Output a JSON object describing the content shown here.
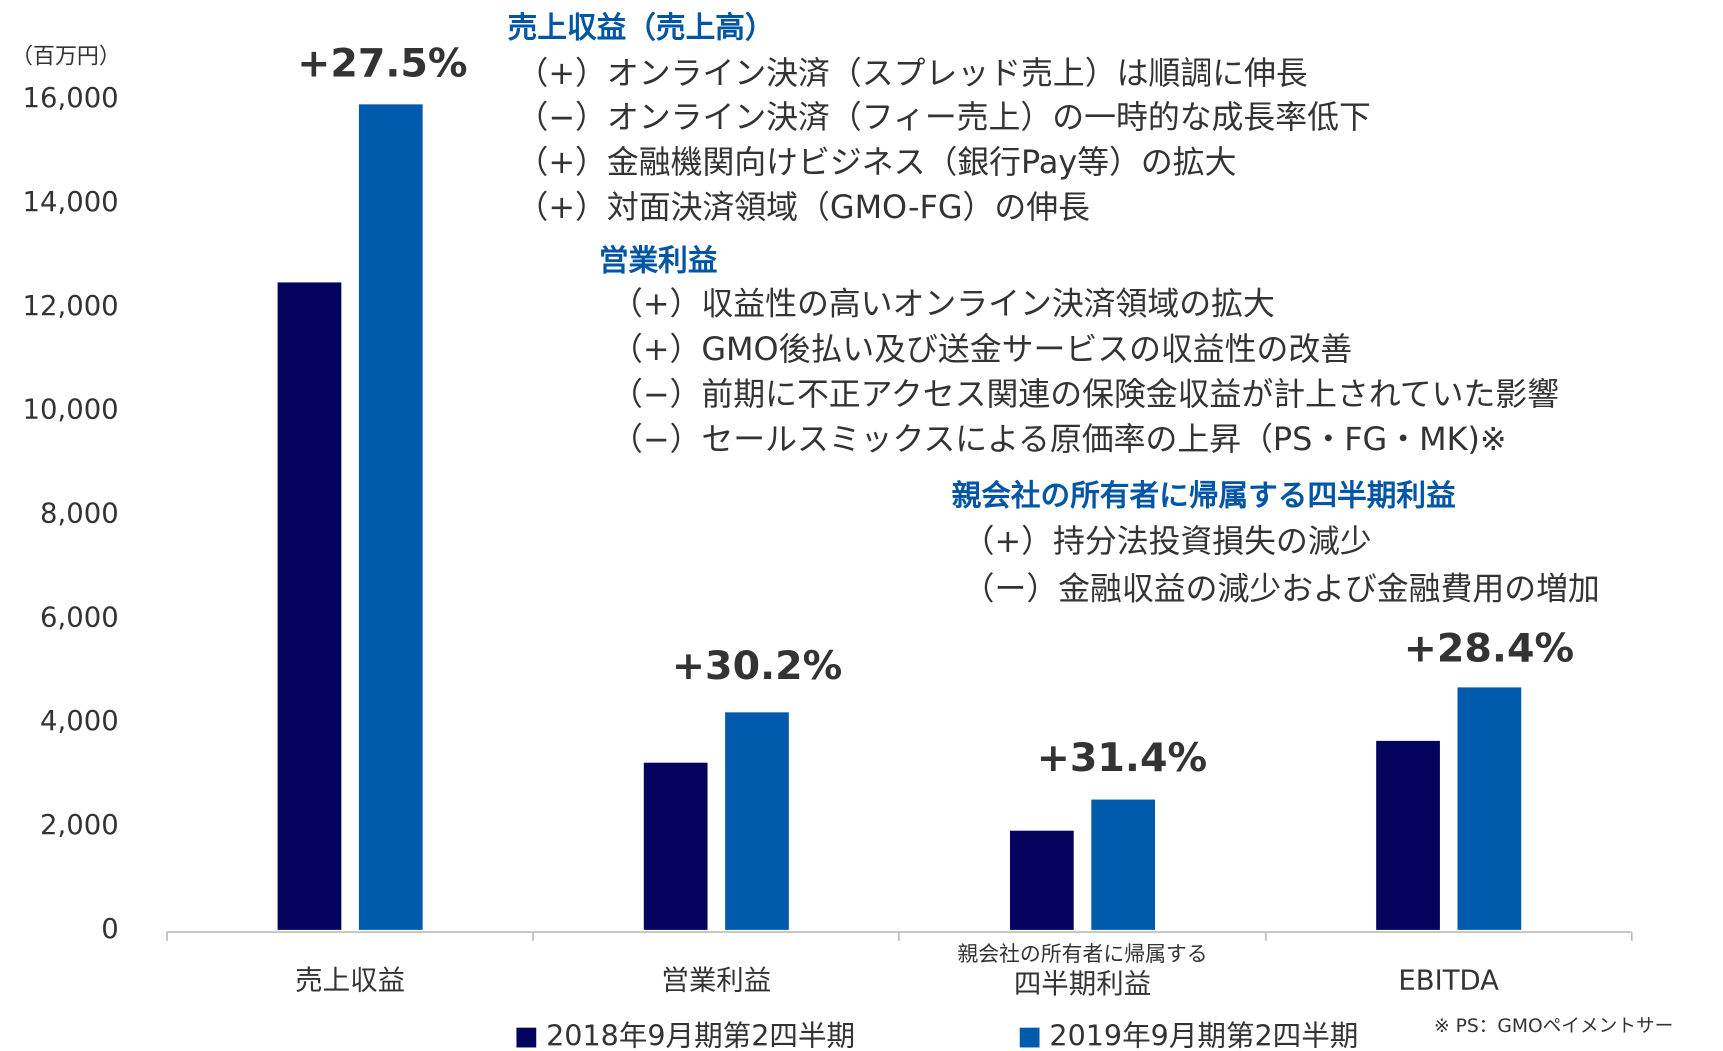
{
  "chart_data": {
    "type": "bar",
    "unit_label": "（百万円）",
    "categories": [
      "売上収益",
      "営業利益",
      [
        "親会社の所有者に帰属する",
        "四半期利益"
      ],
      "EBITDA"
    ],
    "series": [
      {
        "name": "2018年9月期第2四半期",
        "color": "#04045f",
        "values": [
          12470,
          3220,
          1910,
          3640
        ]
      },
      {
        "name": "2019年9月期第2四半期",
        "color": "#005bac",
        "values": [
          15900,
          4190,
          2510,
          4670
        ]
      }
    ],
    "growth_labels": [
      "+27.5%",
      "+30.2%",
      "+31.4%",
      "+28.4%"
    ],
    "ylim": [
      0,
      16000
    ],
    "yticks": [
      0,
      {
        "value": 2000,
        "label": "2,000"
      },
      {
        "value": 4000,
        "label": "4,000"
      },
      {
        "value": 6000,
        "label": "6,000"
      },
      {
        "value": 8000,
        "label": "8,000"
      },
      {
        "value": 10000,
        "label": "10,000"
      },
      {
        "value": 12000,
        "label": "12,000"
      },
      {
        "value": 14000,
        "label": "14,000"
      },
      {
        "value": 16000,
        "label": "16,000"
      }
    ],
    "notes": [
      {
        "heading": "売上収益（売上高）",
        "items": [
          "（+）オンライン決済（スプレッド売上）は順調に伸長",
          "（−）オンライン決済（フィー売上）の一時的な成長率低下",
          "（+）金融機関向けビジネス（銀行Pay等）の拡大",
          "（+）対面決済領域（GMO-FG）の伸長"
        ]
      },
      {
        "heading": "営業利益",
        "items": [
          "（+）収益性の高いオンライン決済領域の拡大",
          "（+）GMO後払い及び送金サービスの収益性の改善",
          "（−）前期に不正アクセス関連の保険金収益が計上されていた影響",
          "（−）セールスミックスによる原価率の上昇（PS・FG・MK)※"
        ]
      },
      {
        "heading": "親会社の所有者に帰属する四半期利益",
        "items": [
          "（+）持分法投資損失の減少",
          "（ー）金融収益の減少および金融費用の増加"
        ]
      }
    ],
    "footnote": "※ PS：GMOペイメントサー"
  }
}
